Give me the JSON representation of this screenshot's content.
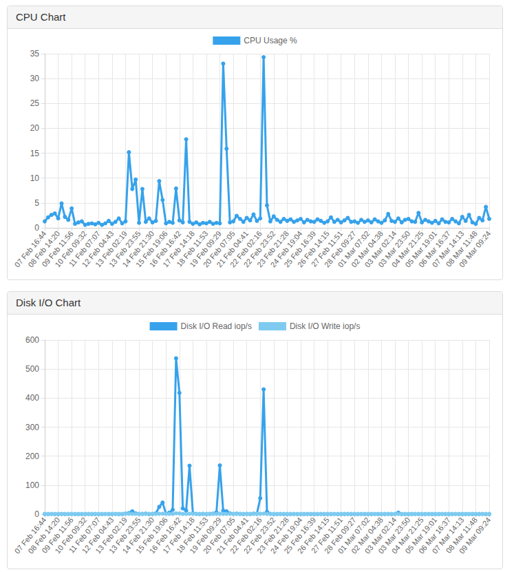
{
  "chart_data": [
    {
      "type": "line",
      "title": "CPU Chart",
      "categories": [
        "07 Feb 16:44",
        null,
        null,
        null,
        "08 Feb 14:20",
        null,
        null,
        null,
        "09 Feb 11:56",
        null,
        null,
        null,
        "10 Feb 09:32",
        null,
        null,
        null,
        "11 Feb 07:07",
        null,
        null,
        null,
        "12 Feb 04:43",
        null,
        null,
        null,
        "13 Feb 02:19",
        null,
        null,
        null,
        "13 Feb 23:55",
        null,
        null,
        null,
        "14 Feb 21:30",
        null,
        null,
        null,
        "15 Feb 19:06",
        null,
        null,
        null,
        "16 Feb 16:42",
        null,
        null,
        null,
        "17 Feb 14:18",
        null,
        null,
        null,
        "18 Feb 11:53",
        null,
        null,
        null,
        "19 Feb 09:29",
        null,
        null,
        null,
        "20 Feb 07:05",
        null,
        null,
        null,
        "21 Feb 04:41",
        null,
        null,
        null,
        "22 Feb 02:16",
        null,
        null,
        null,
        "22 Feb 23:52",
        null,
        null,
        null,
        "23 Feb 21:28",
        null,
        null,
        null,
        "24 Feb 19:04",
        null,
        null,
        null,
        "25 Feb 16:39",
        null,
        null,
        null,
        "26 Feb 14:15",
        null,
        null,
        null,
        "27 Feb 11:51",
        null,
        null,
        null,
        "28 Feb 09:27",
        null,
        null,
        null,
        "01 Mar 07:02",
        null,
        null,
        null,
        "02 Mar 04:38",
        null,
        null,
        null,
        "03 Mar 02:14",
        null,
        null,
        null,
        "03 Mar 23:50",
        null,
        null,
        null,
        "04 Mar 21:25",
        null,
        null,
        null,
        "05 Mar 19:01",
        null,
        null,
        null,
        "06 Mar 16:37",
        null,
        null,
        null,
        "07 Mar 14:13",
        null,
        null,
        null,
        "08 Mar 11:48",
        null,
        null,
        null,
        "09 Mar 09:24"
      ],
      "series": [
        {
          "name": "CPU Usage %",
          "color": "#36a2eb",
          "values": [
            1.3,
            2.1,
            2.6,
            2.9,
            1.9,
            4.9,
            2.2,
            1.6,
            3.9,
            0.8,
            1.1,
            1.3,
            0.6,
            0.8,
            0.9,
            0.7,
            1.0,
            0.6,
            0.9,
            1.4,
            0.8,
            1.2,
            1.9,
            0.9,
            1.3,
            15.2,
            7.8,
            9.7,
            1.0,
            7.8,
            1.2,
            1.9,
            1.1,
            1.4,
            9.4,
            5.6,
            0.9,
            1.2,
            1.0,
            7.9,
            1.5,
            1.1,
            17.8,
            1.2,
            0.8,
            1.1,
            0.7,
            1.0,
            0.9,
            1.2,
            0.8,
            1.0,
            0.9,
            33.0,
            15.9,
            1.1,
            1.3,
            2.4,
            1.8,
            1.2,
            2.0,
            1.5,
            2.7,
            1.4,
            1.9,
            34.3,
            4.5,
            1.3,
            2.3,
            1.6,
            1.2,
            1.8,
            1.4,
            1.7,
            1.2,
            1.5,
            1.8,
            1.1,
            1.6,
            1.3,
            1.2,
            1.7,
            1.4,
            1.0,
            1.3,
            2.1,
            1.2,
            1.6,
            1.1,
            1.5,
            2.0,
            1.2,
            1.3,
            1.0,
            1.6,
            1.2,
            1.5,
            1.1,
            1.7,
            1.3,
            1.0,
            1.5,
            2.8,
            1.4,
            1.2,
            1.9,
            1.1,
            1.6,
            1.8,
            1.3,
            1.2,
            3.0,
            1.1,
            1.6,
            1.3,
            1.0,
            1.4,
            0.9,
            1.7,
            1.2,
            1.1,
            1.8,
            1.3,
            0.9,
            2.2,
            1.4,
            2.6,
            1.1,
            0.8,
            2.0,
            1.5,
            4.2,
            1.8
          ]
        }
      ],
      "ylim": [
        0,
        35
      ],
      "yticks": [
        0,
        5,
        10,
        15,
        20,
        25,
        30,
        35
      ],
      "grid": true,
      "legend": "top",
      "marker": "circle"
    },
    {
      "type": "line",
      "title": "Disk I/O Chart",
      "categories": [
        "07 Feb 16:44",
        null,
        null,
        null,
        "08 Feb 14:20",
        null,
        null,
        null,
        "09 Feb 11:56",
        null,
        null,
        null,
        "10 Feb 09:32",
        null,
        null,
        null,
        "11 Feb 07:07",
        null,
        null,
        null,
        "12 Feb 04:43",
        null,
        null,
        null,
        "13 Feb 02:19",
        null,
        null,
        null,
        "13 Feb 23:55",
        null,
        null,
        null,
        "14 Feb 21:30",
        null,
        null,
        null,
        "15 Feb 19:06",
        null,
        null,
        null,
        "16 Feb 16:42",
        null,
        null,
        null,
        "17 Feb 14:18",
        null,
        null,
        null,
        "18 Feb 11:53",
        null,
        null,
        null,
        "19 Feb 09:29",
        null,
        null,
        null,
        "20 Feb 07:05",
        null,
        null,
        null,
        "21 Feb 04:41",
        null,
        null,
        null,
        "22 Feb 02:16",
        null,
        null,
        null,
        "22 Feb 23:52",
        null,
        null,
        null,
        "23 Feb 21:28",
        null,
        null,
        null,
        "24 Feb 19:04",
        null,
        null,
        null,
        "25 Feb 16:39",
        null,
        null,
        null,
        "26 Feb 14:15",
        null,
        null,
        null,
        "27 Feb 11:51",
        null,
        null,
        null,
        "28 Feb 09:27",
        null,
        null,
        null,
        "01 Mar 07:02",
        null,
        null,
        null,
        "02 Mar 04:38",
        null,
        null,
        null,
        "03 Mar 02:14",
        null,
        null,
        null,
        "03 Mar 23:50",
        null,
        null,
        null,
        "04 Mar 21:25",
        null,
        null,
        null,
        "05 Mar 19:01",
        null,
        null,
        null,
        "06 Mar 16:37",
        null,
        null,
        null,
        "07 Mar 14:13",
        null,
        null,
        null,
        "08 Mar 11:48",
        null,
        null,
        null,
        "09 Mar 09:24"
      ],
      "series": [
        {
          "name": "Disk I/O Read iop/s",
          "color": "#36a2eb",
          "values": [
            0.5,
            0.4,
            0.6,
            0.5,
            0.5,
            0.7,
            0.5,
            0.4,
            0.6,
            0.5,
            0.4,
            0.5,
            0.5,
            0.6,
            0.4,
            0.5,
            0.5,
            0.4,
            0.6,
            0.5,
            0.5,
            0.7,
            0.4,
            0.5,
            2,
            4,
            10,
            3,
            1,
            1,
            2,
            0.5,
            1,
            3,
            25,
            40,
            2,
            5,
            15,
            537,
            418,
            20,
            12,
            167,
            3,
            1,
            0.5,
            1,
            0.5,
            1,
            2,
            6,
            168,
            12,
            10,
            3,
            1,
            2,
            1,
            0.5,
            1,
            0.5,
            2,
            1,
            55,
            430,
            8,
            1,
            0.5,
            0.4,
            0.6,
            0.5,
            0.5,
            0.4,
            0.6,
            0.5,
            0.5,
            0.4,
            0.6,
            0.5,
            0.5,
            0.4,
            0.6,
            0.5,
            0.5,
            0.4,
            0.6,
            0.5,
            0.5,
            0.4,
            0.6,
            0.5,
            0.5,
            0.4,
            0.6,
            0.5,
            0.5,
            0.4,
            0.6,
            0.5,
            0.5,
            0.4,
            0.6,
            0.5,
            0.6,
            5,
            0.5,
            0.4,
            0.5,
            0.4,
            0.6,
            0.5,
            0.5,
            0.4,
            0.6,
            0.5,
            0.5,
            0.4,
            0.6,
            0.5,
            0.5,
            0.4,
            0.6,
            0.5,
            0.5,
            0.4,
            0.6,
            0.5,
            0.5,
            0.4,
            0.6,
            0.5,
            0.5
          ]
        },
        {
          "name": "Disk I/O Write iop/s",
          "color": "#7ecbef",
          "values": [
            1.2,
            0.9,
            1.1,
            1.0,
            1.2,
            0.9,
            1.1,
            1.0,
            1.2,
            0.9,
            1.1,
            1.0,
            1.2,
            0.9,
            1.1,
            1.0,
            1.2,
            0.9,
            1.1,
            1.0,
            1.2,
            0.9,
            1.1,
            1.0,
            1.2,
            1.5,
            1.1,
            1.0,
            1.2,
            0.9,
            1.1,
            1.0,
            1.2,
            0.9,
            1.4,
            1.6,
            1.2,
            0.9,
            1.1,
            3.0,
            2.5,
            0.9,
            1.1,
            1.3,
            1.2,
            0.9,
            1.1,
            1.0,
            1.2,
            0.9,
            1.1,
            1.0,
            1.4,
            0.9,
            1.1,
            1.0,
            1.2,
            0.9,
            1.1,
            1.0,
            1.2,
            0.9,
            1.1,
            1.0,
            1.3,
            1.8,
            1.1,
            1.0,
            1.2,
            0.9,
            1.1,
            1.0,
            1.2,
            0.9,
            1.1,
            1.0,
            1.2,
            0.9,
            1.1,
            1.0,
            1.2,
            0.9,
            1.1,
            1.0,
            1.2,
            0.9,
            1.1,
            1.0,
            1.2,
            0.9,
            1.1,
            1.0,
            1.2,
            0.9,
            1.1,
            1.0,
            1.2,
            0.9,
            1.1,
            1.0,
            1.2,
            0.9,
            1.1,
            1.0,
            1.2,
            0.9,
            1.1,
            1.0,
            1.2,
            0.9,
            1.1,
            1.0,
            1.2,
            0.9,
            1.1,
            1.0,
            1.2,
            0.9,
            1.1,
            1.0,
            1.2,
            0.9,
            1.1,
            1.0,
            1.2,
            0.9,
            1.1,
            1.0,
            1.2,
            0.9,
            1.1,
            1.0,
            1.0
          ]
        }
      ],
      "ylim": [
        0,
        600
      ],
      "yticks": [
        0,
        100,
        200,
        300,
        400,
        500,
        600
      ],
      "grid": true,
      "legend": "top",
      "marker": "circle"
    }
  ]
}
